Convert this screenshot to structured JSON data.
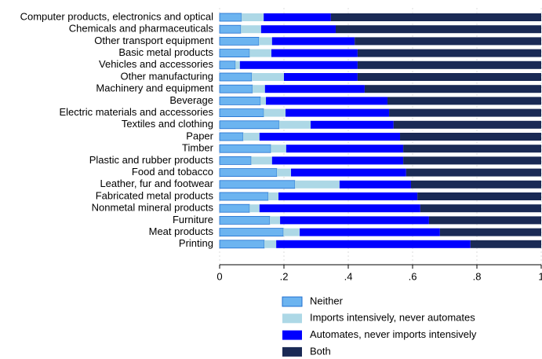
{
  "chart_data": {
    "type": "stacked-bar-horizontal",
    "categories": [
      "Computer products, electronics and optical",
      "Chemicals and pharmaceuticals",
      "Other transport equipment",
      "Basic metal products",
      "Vehicles and accessories",
      "Other manufacturing",
      "Machinery and equipment",
      "Beverage",
      "Electric materials and accessories",
      "Textiles and clothing",
      "Paper",
      "Timber",
      "Plastic and rubber products",
      "Food and tobacco",
      "Leather, fur and footwear",
      "Fabricated metal products",
      "Nonmetal mineral products",
      "Furniture",
      "Meat products",
      "Printing"
    ],
    "series": [
      {
        "name": "Neither",
        "color": "#6cb4f0",
        "values": [
          0.068,
          0.066,
          0.122,
          0.093,
          0.049,
          0.1,
          0.102,
          0.127,
          0.137,
          0.185,
          0.073,
          0.159,
          0.098,
          0.178,
          0.234,
          0.151,
          0.093,
          0.156,
          0.198,
          0.139
        ]
      },
      {
        "name": "Imports intensively, never automates",
        "color": "#add8e6",
        "values": [
          0.069,
          0.063,
          0.041,
          0.068,
          0.014,
          0.1,
          0.039,
          0.017,
          0.068,
          0.098,
          0.051,
          0.048,
          0.065,
          0.044,
          0.139,
          0.032,
          0.031,
          0.032,
          0.051,
          0.037
        ]
      },
      {
        "name": "Automates, never imports intensively",
        "color": "#0000ff",
        "values": [
          0.209,
          0.232,
          0.257,
          0.268,
          0.366,
          0.229,
          0.31,
          0.378,
          0.322,
          0.258,
          0.437,
          0.364,
          0.408,
          0.358,
          0.222,
          0.432,
          0.5,
          0.463,
          0.436,
          0.604
        ]
      },
      {
        "name": "Both",
        "color": "#1a2a55",
        "values": [
          0.654,
          0.639,
          0.58,
          0.571,
          0.571,
          0.571,
          0.549,
          0.478,
          0.473,
          0.459,
          0.439,
          0.429,
          0.429,
          0.42,
          0.405,
          0.385,
          0.376,
          0.349,
          0.315,
          0.22
        ]
      }
    ],
    "xlim": [
      0,
      1
    ],
    "xticks": [
      0,
      {
        "value": 0.2,
        "label": ".2"
      },
      {
        "value": 0.4,
        "label": ".4"
      },
      {
        "value": 0.6,
        "label": ".6"
      },
      {
        "value": 0.8,
        "label": ".8"
      },
      1
    ],
    "grid": true
  }
}
